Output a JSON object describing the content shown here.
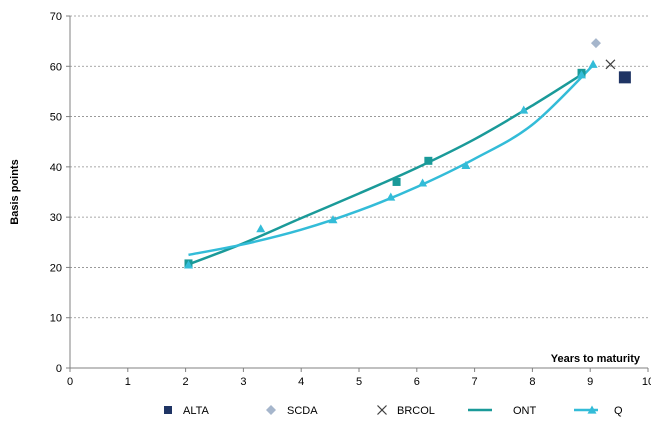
{
  "chart_data": {
    "type": "scatter",
    "title": "",
    "xlabel": "Years to maturity",
    "ylabel": "Basis points",
    "xlim": [
      0,
      10
    ],
    "ylim": [
      0,
      70
    ],
    "xticks": [
      0,
      1,
      2,
      3,
      4,
      5,
      6,
      7,
      8,
      9,
      10
    ],
    "yticks": [
      0,
      10,
      20,
      30,
      40,
      50,
      60,
      70
    ],
    "grid": "horizontal dashed",
    "legend_position": "bottom",
    "series": [
      {
        "name": "ALTA",
        "kind": "marker",
        "marker": "square",
        "color": "#1f3464",
        "points": [
          [
            9.6,
            57.8
          ]
        ]
      },
      {
        "name": "SCDA",
        "kind": "marker",
        "marker": "diamond",
        "color": "#a6b6cc",
        "points": [
          [
            9.1,
            64.6
          ]
        ]
      },
      {
        "name": "BRCOL",
        "kind": "marker",
        "marker": "x",
        "color": "#404040",
        "points": [
          [
            9.35,
            60.4
          ]
        ]
      },
      {
        "name": "ONT",
        "kind": "marker+trend",
        "marker": "square",
        "color": "#1a9a99",
        "points": [
          [
            2.05,
            20.8
          ],
          [
            5.65,
            37.0
          ],
          [
            6.2,
            41.2
          ],
          [
            8.85,
            58.7
          ]
        ],
        "trend": [
          [
            2.05,
            20.6
          ],
          [
            3.0,
            24.8
          ],
          [
            4.0,
            29.8
          ],
          [
            5.0,
            34.7
          ],
          [
            6.0,
            39.8
          ],
          [
            7.0,
            45.5
          ],
          [
            8.0,
            52.2
          ],
          [
            8.9,
            58.7
          ]
        ]
      },
      {
        "name": "Q",
        "kind": "marker+trend",
        "marker": "triangle",
        "color": "#33bcd8",
        "points": [
          [
            2.05,
            20.5
          ],
          [
            3.3,
            27.7
          ],
          [
            4.55,
            29.5
          ],
          [
            5.55,
            34.0
          ],
          [
            6.1,
            36.8
          ],
          [
            6.85,
            40.3
          ],
          [
            7.85,
            51.3
          ],
          [
            8.85,
            58.3
          ],
          [
            9.05,
            60.4
          ]
        ],
        "trend": [
          [
            2.05,
            22.5
          ],
          [
            3.0,
            24.6
          ],
          [
            4.0,
            27.5
          ],
          [
            5.0,
            31.3
          ],
          [
            6.0,
            36.0
          ],
          [
            7.0,
            41.6
          ],
          [
            8.0,
            48.4
          ],
          [
            9.05,
            60.2
          ]
        ]
      }
    ]
  }
}
